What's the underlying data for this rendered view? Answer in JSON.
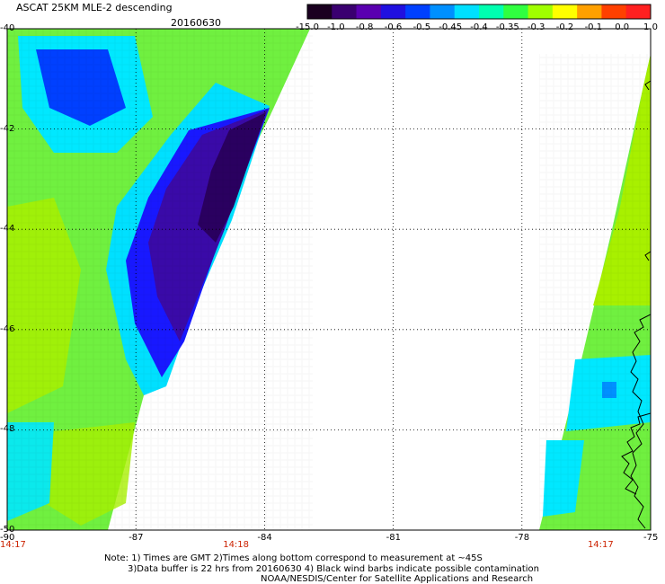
{
  "header": {
    "title": "ASCAT 25KM MLE-2 descending",
    "date": "20160630"
  },
  "colorbar": {
    "labels": [
      "-15.0",
      "-1.0",
      "-0.8",
      "-0.6",
      "-0.5",
      "-0.45",
      "-0.4",
      "-0.35",
      "-0.3",
      "-0.2",
      "-0.1",
      "0.0",
      "1.0"
    ],
    "colors": [
      "#1a0020",
      "#3a0070",
      "#5a00b0",
      "#2010e0",
      "#0040ff",
      "#0090ff",
      "#00e0ff",
      "#00ffb0",
      "#30ff40",
      "#a0ff00",
      "#ffff00",
      "#ffa000",
      "#ff4000",
      "#ff2020"
    ]
  },
  "map": {
    "lon_range": [
      -90,
      -75
    ],
    "lat_range": [
      -50,
      -40
    ],
    "x_ticks": [
      "-90",
      "-87",
      "-84",
      "-81",
      "-78",
      "-75"
    ],
    "y_ticks": [
      "-40",
      "-42",
      "-44",
      "-46",
      "-48",
      "-50"
    ],
    "times": [
      {
        "text": "14:17",
        "lon": -90
      },
      {
        "text": "14:18",
        "lon": -84.8
      },
      {
        "text": "14:17",
        "lon": -76.3
      }
    ],
    "colors": {
      "ocean_green": "#70f040",
      "lime": "#a8f000",
      "cyan": "#00e8ff",
      "blue": "#0020ff",
      "violet": "#3a0aa8",
      "dark_violet": "#2a0060",
      "coastline": "#000000"
    }
  },
  "notes": {
    "line1": "Note: 1) Times are GMT 2)Times along bottom correspond to measurement at ~45S",
    "line2": "3)Data buffer is 22 hrs from 20160630 4) Black wind barbs indicate possible contamination",
    "line3": "NOAA/NESDIS/Center for Satellite Applications and Research"
  }
}
